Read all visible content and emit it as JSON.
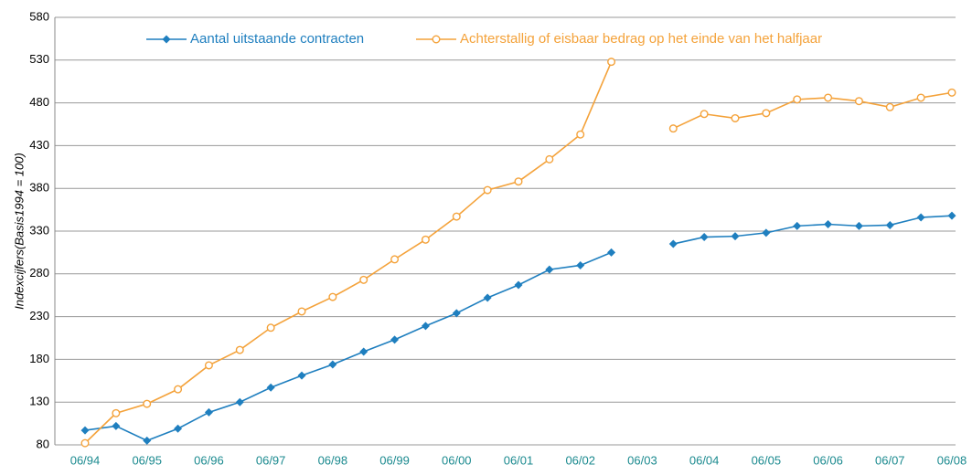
{
  "chart_data": {
    "type": "line",
    "ylabel": "Indexcijfers(Basis1994 = 100)",
    "categories": [
      "06/94",
      null,
      "06/95",
      null,
      "06/96",
      null,
      "06/97",
      null,
      "06/98",
      null,
      "06/99",
      null,
      "06/00",
      null,
      "06/01",
      null,
      "06/02",
      null,
      "06/03",
      null,
      "06/04",
      null,
      "06/05",
      null,
      "06/06",
      null,
      "06/07",
      null,
      "06/08"
    ],
    "series": [
      {
        "name": "Aantal uitstaande contracten",
        "color": "#1f7fbf",
        "marker": "diamond",
        "values": [
          97,
          102,
          85,
          99,
          118,
          130,
          147,
          161,
          174,
          189,
          203,
          219,
          234,
          252,
          267,
          285,
          290,
          305,
          null,
          315,
          323,
          324,
          328,
          336,
          338,
          336,
          337,
          346,
          348
        ]
      },
      {
        "name": "Achterstallig of eisbaar bedrag op het einde van het halfjaar",
        "color": "#f4a23a",
        "marker": "open-circle",
        "values": [
          82,
          117,
          128,
          145,
          173,
          191,
          217,
          236,
          253,
          273,
          297,
          320,
          347,
          378,
          388,
          414,
          443,
          528,
          null,
          450,
          467,
          462,
          468,
          484,
          486,
          482,
          475,
          486,
          492
        ]
      }
    ],
    "ylim": [
      80,
      580
    ],
    "yticks": [
      80,
      130,
      180,
      230,
      280,
      330,
      380,
      430,
      480,
      530,
      580
    ],
    "grid": true,
    "legend": "top"
  }
}
